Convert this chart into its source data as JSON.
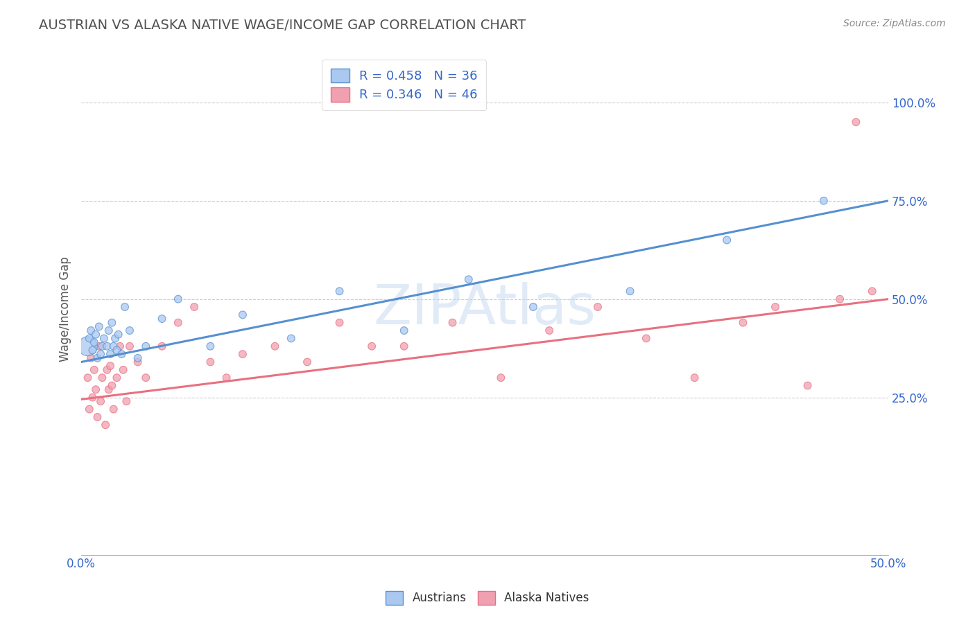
{
  "title": "AUSTRIAN VS ALASKA NATIVE WAGE/INCOME GAP CORRELATION CHART",
  "source": "Source: ZipAtlas.com",
  "ylabel": "Wage/Income Gap",
  "xlim": [
    0.0,
    0.5
  ],
  "ylim": [
    -0.15,
    1.1
  ],
  "legend_entries": [
    {
      "label": "R = 0.458   N = 36",
      "color": "#aac8f0"
    },
    {
      "label": "R = 0.346   N = 46",
      "color": "#f0a0b0"
    }
  ],
  "watermark": "ZIPAtlas",
  "blue_color": "#5590d0",
  "pink_color": "#e87080",
  "austrians": {
    "x": [
      0.004,
      0.005,
      0.006,
      0.007,
      0.008,
      0.009,
      0.01,
      0.011,
      0.012,
      0.013,
      0.014,
      0.016,
      0.017,
      0.018,
      0.019,
      0.02,
      0.021,
      0.022,
      0.023,
      0.025,
      0.027,
      0.03,
      0.035,
      0.04,
      0.05,
      0.06,
      0.08,
      0.1,
      0.13,
      0.16,
      0.2,
      0.24,
      0.28,
      0.34,
      0.4,
      0.46
    ],
    "y": [
      0.38,
      0.4,
      0.42,
      0.37,
      0.39,
      0.41,
      0.35,
      0.43,
      0.36,
      0.38,
      0.4,
      0.38,
      0.42,
      0.36,
      0.44,
      0.38,
      0.4,
      0.37,
      0.41,
      0.36,
      0.48,
      0.42,
      0.35,
      0.38,
      0.45,
      0.5,
      0.38,
      0.46,
      0.4,
      0.52,
      0.42,
      0.55,
      0.48,
      0.52,
      0.65,
      0.75
    ],
    "sizes": [
      400,
      60,
      60,
      60,
      60,
      60,
      60,
      60,
      60,
      60,
      60,
      60,
      60,
      60,
      60,
      60,
      60,
      60,
      60,
      60,
      60,
      60,
      60,
      60,
      60,
      60,
      60,
      60,
      60,
      60,
      60,
      60,
      60,
      60,
      60,
      60
    ]
  },
  "alaska_natives": {
    "x": [
      0.004,
      0.005,
      0.006,
      0.007,
      0.008,
      0.009,
      0.01,
      0.011,
      0.012,
      0.013,
      0.015,
      0.016,
      0.017,
      0.018,
      0.019,
      0.02,
      0.022,
      0.024,
      0.026,
      0.028,
      0.03,
      0.035,
      0.04,
      0.05,
      0.06,
      0.07,
      0.08,
      0.09,
      0.1,
      0.12,
      0.14,
      0.16,
      0.18,
      0.2,
      0.23,
      0.26,
      0.29,
      0.32,
      0.35,
      0.38,
      0.41,
      0.43,
      0.45,
      0.47,
      0.48,
      0.49
    ],
    "y": [
      0.3,
      0.22,
      0.35,
      0.25,
      0.32,
      0.27,
      0.2,
      0.38,
      0.24,
      0.3,
      0.18,
      0.32,
      0.27,
      0.33,
      0.28,
      0.22,
      0.3,
      0.38,
      0.32,
      0.24,
      0.38,
      0.34,
      0.3,
      0.38,
      0.44,
      0.48,
      0.34,
      0.3,
      0.36,
      0.38,
      0.34,
      0.44,
      0.38,
      0.38,
      0.44,
      0.3,
      0.42,
      0.48,
      0.4,
      0.3,
      0.44,
      0.48,
      0.28,
      0.5,
      0.95,
      0.52
    ],
    "sizes": [
      60,
      60,
      60,
      60,
      60,
      60,
      60,
      60,
      60,
      60,
      60,
      60,
      60,
      60,
      60,
      60,
      60,
      60,
      60,
      60,
      60,
      60,
      60,
      60,
      60,
      60,
      60,
      60,
      60,
      60,
      60,
      60,
      60,
      60,
      60,
      60,
      60,
      60,
      60,
      60,
      60,
      60,
      60,
      60,
      60,
      60
    ]
  },
  "blue_line": {
    "x0": 0.0,
    "y0": 0.34,
    "x1": 0.5,
    "y1": 0.75
  },
  "pink_line": {
    "x0": 0.0,
    "y0": 0.245,
    "x1": 0.5,
    "y1": 0.5
  },
  "ytick_vals": [
    0.25,
    0.5,
    0.75,
    1.0
  ],
  "ytick_labels": [
    "25.0%",
    "50.0%",
    "75.0%",
    "100.0%"
  ],
  "xtick_vals": [
    0.0,
    0.5
  ],
  "xtick_labels": [
    "0.0%",
    "50.0%"
  ],
  "grid_color": "#cccccc",
  "background_color": "#ffffff",
  "title_color": "#505050",
  "source_color": "#888888",
  "tick_color": "#3366cc"
}
